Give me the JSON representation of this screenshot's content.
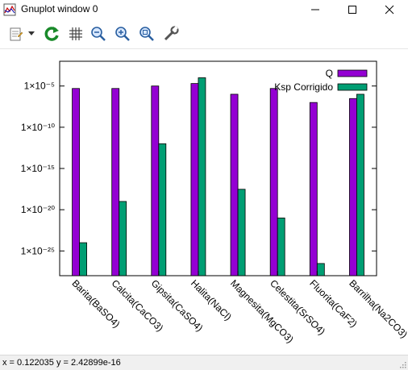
{
  "window": {
    "title": "Gnuplot window 0",
    "controls": {
      "minimize": "minimize-icon",
      "maximize": "maximize-icon",
      "close": "close-icon"
    }
  },
  "toolbar": {
    "icons": [
      "copy-to-clipboard-icon",
      "dropdown-arrow-icon",
      "replot-icon",
      "grid-icon",
      "zoom-previous-icon",
      "zoom-next-icon",
      "autoscale-icon",
      "options-wrench-icon"
    ]
  },
  "status": {
    "coords": "x = 0.122035 y = 2.42899e-16"
  },
  "colors": {
    "q": "#9400d3",
    "ksp": "#009e73"
  },
  "chart_data": {
    "type": "bar",
    "title": "",
    "xlabel": "",
    "ylabel": "",
    "y_scale": "log10",
    "ylim": [
      1e-28,
      0.01
    ],
    "y_ticks": [
      {
        "exp": -5,
        "label": "1×10⁻⁵"
      },
      {
        "exp": -10,
        "label": "1×10⁻¹⁰"
      },
      {
        "exp": -15,
        "label": "1×10⁻¹⁵"
      },
      {
        "exp": -20,
        "label": "1×10⁻²⁰"
      },
      {
        "exp": -25,
        "label": "1×10⁻²⁵"
      }
    ],
    "categories": [
      "Barita(BaSO4)",
      "Calcita(CaCO3)",
      "Gipsita(CaSO4)",
      "Halita(NaCl)",
      "Magnesita(MgCO3)",
      "Celestita(SrSO4)",
      "Fluorita(CaF2)",
      "Barrilha(Na2CO3)"
    ],
    "series": [
      {
        "name": "Q",
        "values": [
          5e-06,
          5e-06,
          1e-05,
          2e-05,
          1e-06,
          5e-06,
          1e-07,
          3e-07
        ]
      },
      {
        "name": "Ksp Corrigido",
        "values": [
          1e-24,
          1e-19,
          1e-12,
          0.0001,
          3e-18,
          1e-21,
          3e-27,
          1e-06
        ]
      }
    ],
    "legend_position": "top-right",
    "grid": false
  }
}
